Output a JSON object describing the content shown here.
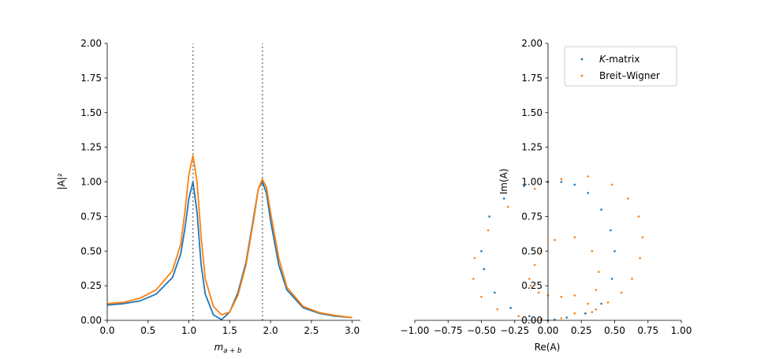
{
  "colors": {
    "kmatrix": "#1f77b4",
    "breit_wigner": "#ff7f0e",
    "resonance_line": "#808080"
  },
  "chart_data": [
    {
      "type": "line",
      "xlabel_main": "m",
      "xlabel_sub": "a + b",
      "ylabel": "|A|²",
      "xlim": [
        0.0,
        3.1
      ],
      "ylim": [
        0.0,
        2.0
      ],
      "xticks": [
        0.0,
        0.5,
        1.0,
        1.5,
        2.0,
        2.5,
        3.0
      ],
      "xtick_labels": [
        "0.0",
        "0.5",
        "1.0",
        "1.5",
        "2.0",
        "2.5",
        "3.0"
      ],
      "yticks": [
        0.0,
        0.25,
        0.5,
        0.75,
        1.0,
        1.25,
        1.5,
        1.75,
        2.0
      ],
      "ytick_labels": [
        "0.00",
        "0.25",
        "0.50",
        "0.75",
        "1.00",
        "1.25",
        "1.50",
        "1.75",
        "2.00"
      ],
      "resonances": [
        1.05,
        1.9
      ],
      "series": [
        {
          "key": "kmatrix",
          "x": [
            0.0,
            0.2,
            0.4,
            0.6,
            0.8,
            0.9,
            0.95,
            1.0,
            1.05,
            1.1,
            1.15,
            1.2,
            1.3,
            1.4,
            1.5,
            1.6,
            1.7,
            1.8,
            1.85,
            1.9,
            1.95,
            2.0,
            2.1,
            2.2,
            2.4,
            2.6,
            2.8,
            3.0
          ],
          "y": [
            0.11,
            0.12,
            0.14,
            0.19,
            0.31,
            0.48,
            0.66,
            0.88,
            1.0,
            0.78,
            0.4,
            0.19,
            0.04,
            0.005,
            0.06,
            0.2,
            0.42,
            0.77,
            0.95,
            1.0,
            0.92,
            0.72,
            0.4,
            0.22,
            0.09,
            0.05,
            0.03,
            0.02
          ]
        },
        {
          "key": "breit_wigner",
          "x": [
            0.0,
            0.2,
            0.4,
            0.6,
            0.8,
            0.9,
            0.95,
            1.0,
            1.05,
            1.1,
            1.15,
            1.2,
            1.3,
            1.4,
            1.5,
            1.6,
            1.7,
            1.8,
            1.85,
            1.9,
            1.95,
            2.0,
            2.1,
            2.2,
            2.4,
            2.6,
            2.8,
            3.0
          ],
          "y": [
            0.12,
            0.13,
            0.16,
            0.22,
            0.36,
            0.55,
            0.78,
            1.05,
            1.19,
            1.0,
            0.6,
            0.3,
            0.1,
            0.04,
            0.06,
            0.18,
            0.4,
            0.75,
            0.95,
            1.02,
            0.96,
            0.78,
            0.45,
            0.24,
            0.1,
            0.055,
            0.035,
            0.02
          ]
        }
      ]
    },
    {
      "type": "scatter",
      "xlabel": "Re(A)",
      "ylabel": "Im(A)",
      "xlim": [
        -1.0,
        1.0
      ],
      "ylim": [
        0.0,
        2.0
      ],
      "xticks": [
        -1.0,
        -0.75,
        -0.5,
        -0.25,
        0.0,
        0.25,
        0.5,
        0.75,
        1.0
      ],
      "xtick_labels": [
        "−1.00",
        "−0.75",
        "−0.50",
        "−0.25",
        "0.00",
        "0.25",
        "0.50",
        "0.75",
        "1.00"
      ],
      "yticks": [
        0.0,
        0.25,
        0.5,
        0.75,
        1.0,
        1.25,
        1.5,
        1.75,
        2.0
      ],
      "ytick_labels": [
        "0.00",
        "0.25",
        "0.50",
        "0.75",
        "1.00",
        "1.25",
        "1.50",
        "1.75",
        "2.00"
      ],
      "legend": {
        "placement": "top-right",
        "kmatrix_italic": "K",
        "kmatrix_rest": "-matrix",
        "breit_wigner_label": "Breit–Wigner"
      },
      "series": [
        {
          "key": "kmatrix",
          "x": [
            0.0,
            -0.18,
            -0.33,
            -0.44,
            -0.5,
            -0.48,
            -0.4,
            -0.28,
            -0.14,
            -0.05,
            0.0,
            0.05,
            0.14,
            0.28,
            0.4,
            0.48,
            0.5,
            0.47,
            0.4,
            0.3,
            0.2,
            0.1,
            0.0
          ],
          "y": [
            1.0,
            0.97,
            0.88,
            0.75,
            0.5,
            0.37,
            0.2,
            0.09,
            0.03,
            0.005,
            0.0,
            0.005,
            0.02,
            0.05,
            0.12,
            0.3,
            0.5,
            0.65,
            0.8,
            0.92,
            0.98,
            1.0,
            1.0
          ]
        },
        {
          "key": "breit_wigner",
          "x": [
            0.33,
            0.36,
            0.45,
            0.55,
            0.63,
            0.69,
            0.71,
            0.68,
            0.6,
            0.48,
            0.3,
            0.1,
            -0.1,
            -0.3,
            -0.45,
            -0.55,
            -0.56,
            -0.5,
            -0.38,
            -0.22,
            -0.05,
            0.1,
            0.2,
            0.3,
            0.36,
            0.38,
            0.33,
            0.2,
            0.05,
            -0.05,
            -0.1,
            -0.14,
            -0.13,
            -0.07,
            0.0,
            0.1,
            0.2
          ],
          "y": [
            0.06,
            0.08,
            0.13,
            0.2,
            0.3,
            0.45,
            0.6,
            0.75,
            0.88,
            0.98,
            1.04,
            1.02,
            0.95,
            0.82,
            0.65,
            0.45,
            0.3,
            0.17,
            0.08,
            0.03,
            0.01,
            0.015,
            0.05,
            0.12,
            0.22,
            0.35,
            0.5,
            0.6,
            0.58,
            0.5,
            0.4,
            0.3,
            0.25,
            0.2,
            0.18,
            0.17,
            0.18
          ]
        }
      ]
    }
  ]
}
